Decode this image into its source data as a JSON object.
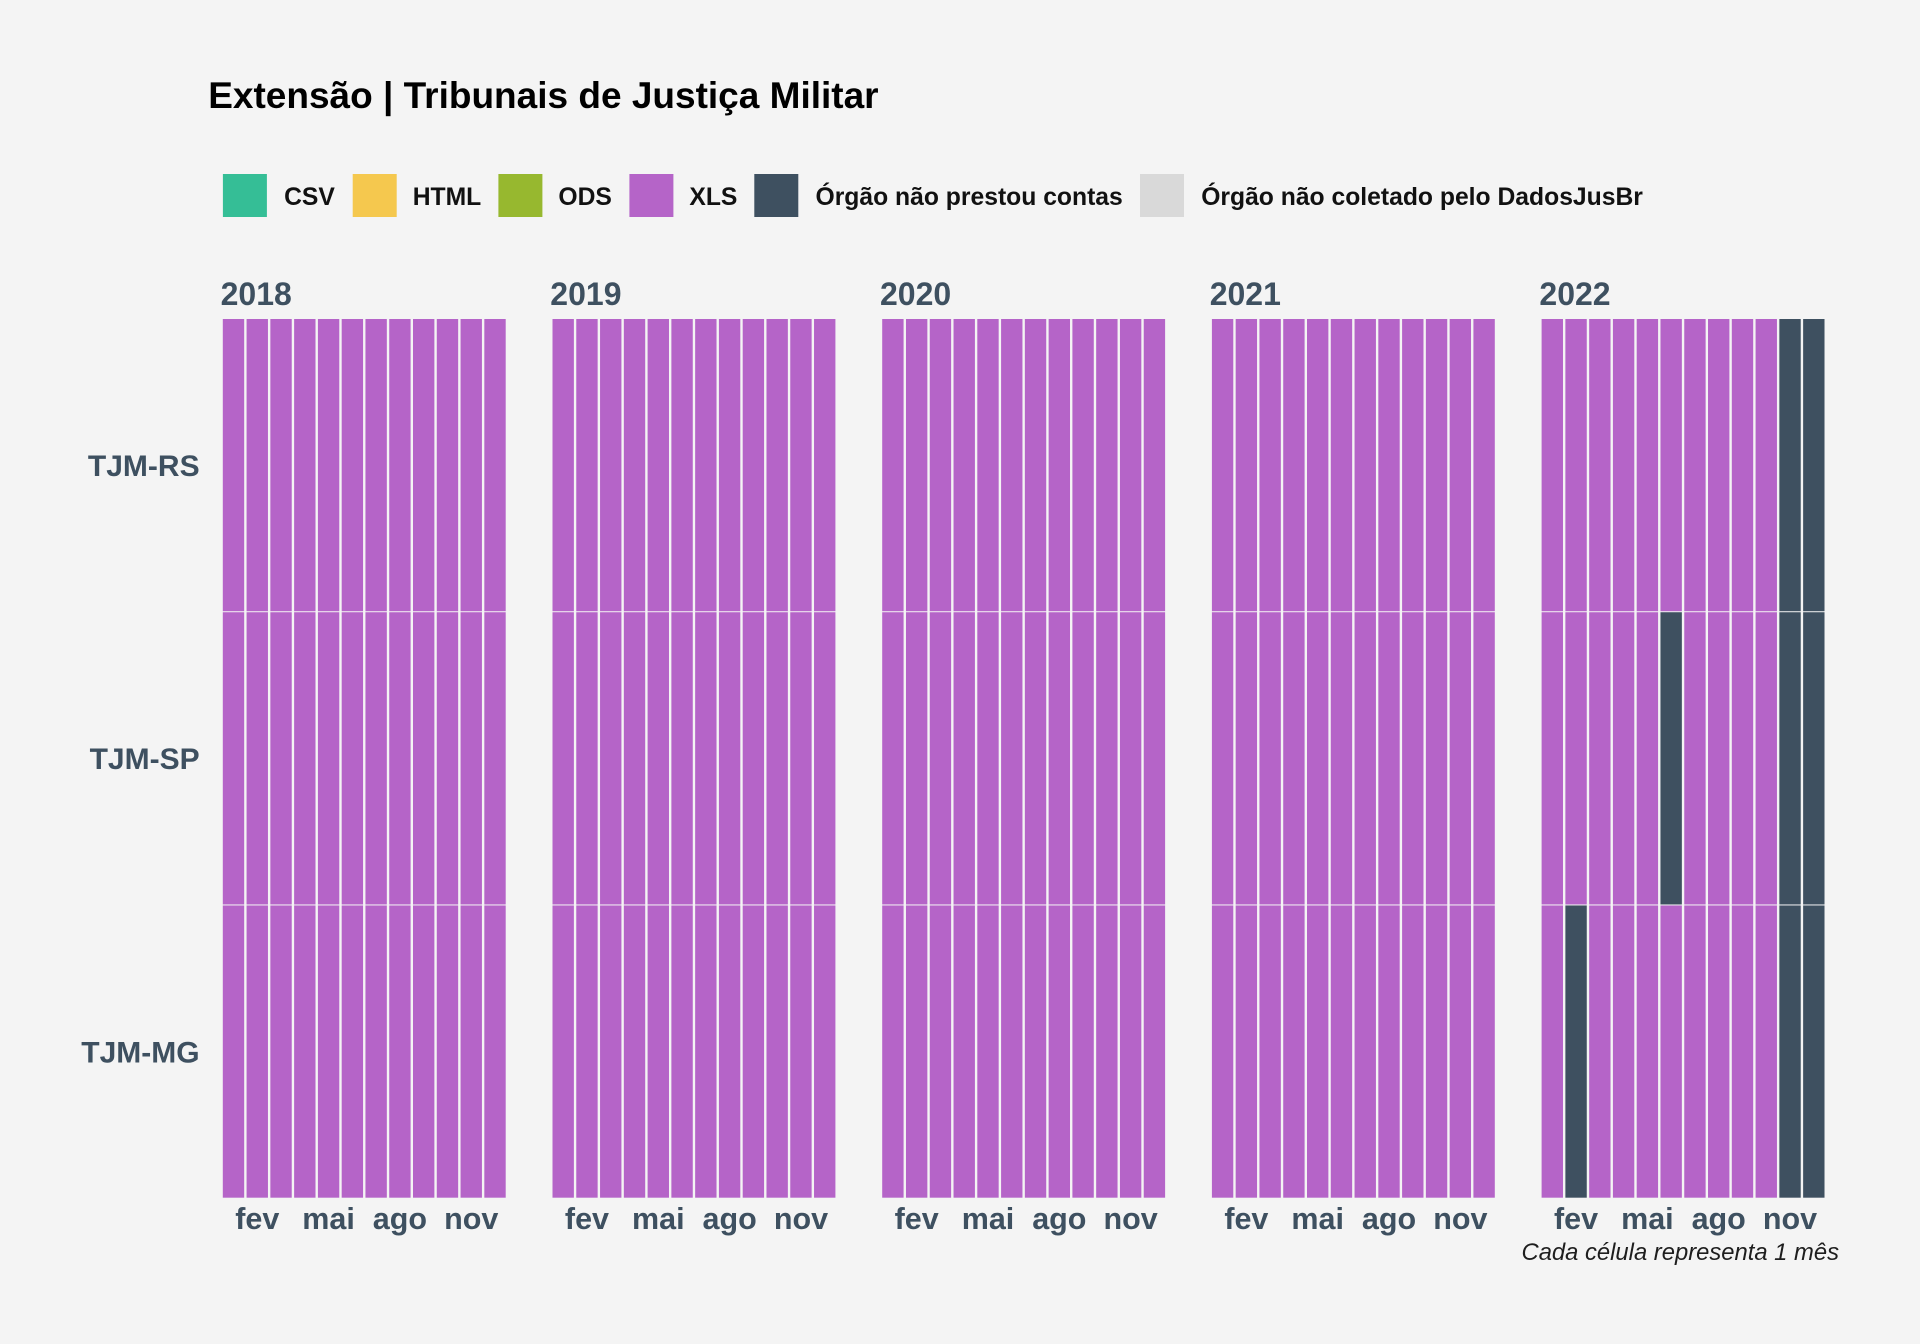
{
  "chart_data": {
    "type": "heatmap",
    "title": "Extensão | Tribunais de Justiça Militar",
    "legend_position": "top-left",
    "legend": [
      {
        "label": "CSV",
        "color": "#35BE96"
      },
      {
        "label": "HTML",
        "color": "#F5C84E"
      },
      {
        "label": "ODS",
        "color": "#97B82F"
      },
      {
        "label": "XLS",
        "color": "#B564C8"
      },
      {
        "label": "Órgão não prestou contas",
        "color": "#3E5060"
      },
      {
        "label": "Órgão não coletado pelo DadosJusBr",
        "color": "#D9D9D9"
      }
    ],
    "facets": [
      "2018",
      "2019",
      "2020",
      "2021",
      "2022"
    ],
    "rows": [
      "TJM-RS",
      "TJM-SP",
      "TJM-MG"
    ],
    "x_ticks": [
      {
        "label": "fev",
        "month": 2
      },
      {
        "label": "mai",
        "month": 5
      },
      {
        "label": "ago",
        "month": 8
      },
      {
        "label": "nov",
        "month": 11
      }
    ],
    "caption": "Cada célula representa 1 mês",
    "cells": {
      "2018": {
        "TJM-RS": [
          "XLS",
          "XLS",
          "XLS",
          "XLS",
          "XLS",
          "XLS",
          "XLS",
          "XLS",
          "XLS",
          "XLS",
          "XLS",
          "XLS"
        ],
        "TJM-SP": [
          "XLS",
          "XLS",
          "XLS",
          "XLS",
          "XLS",
          "XLS",
          "XLS",
          "XLS",
          "XLS",
          "XLS",
          "XLS",
          "XLS"
        ],
        "TJM-MG": [
          "XLS",
          "XLS",
          "XLS",
          "XLS",
          "XLS",
          "XLS",
          "XLS",
          "XLS",
          "XLS",
          "XLS",
          "XLS",
          "XLS"
        ]
      },
      "2019": {
        "TJM-RS": [
          "XLS",
          "XLS",
          "XLS",
          "XLS",
          "XLS",
          "XLS",
          "XLS",
          "XLS",
          "XLS",
          "XLS",
          "XLS",
          "XLS"
        ],
        "TJM-SP": [
          "XLS",
          "XLS",
          "XLS",
          "XLS",
          "XLS",
          "XLS",
          "XLS",
          "XLS",
          "XLS",
          "XLS",
          "XLS",
          "XLS"
        ],
        "TJM-MG": [
          "XLS",
          "XLS",
          "XLS",
          "XLS",
          "XLS",
          "XLS",
          "XLS",
          "XLS",
          "XLS",
          "XLS",
          "XLS",
          "XLS"
        ]
      },
      "2020": {
        "TJM-RS": [
          "XLS",
          "XLS",
          "XLS",
          "XLS",
          "XLS",
          "XLS",
          "XLS",
          "XLS",
          "XLS",
          "XLS",
          "XLS",
          "XLS"
        ],
        "TJM-SP": [
          "XLS",
          "XLS",
          "XLS",
          "XLS",
          "XLS",
          "XLS",
          "XLS",
          "XLS",
          "XLS",
          "XLS",
          "XLS",
          "XLS"
        ],
        "TJM-MG": [
          "XLS",
          "XLS",
          "XLS",
          "XLS",
          "XLS",
          "XLS",
          "XLS",
          "XLS",
          "XLS",
          "XLS",
          "XLS",
          "XLS"
        ]
      },
      "2021": {
        "TJM-RS": [
          "XLS",
          "XLS",
          "XLS",
          "XLS",
          "XLS",
          "XLS",
          "XLS",
          "XLS",
          "XLS",
          "XLS",
          "XLS",
          "XLS"
        ],
        "TJM-SP": [
          "XLS",
          "XLS",
          "XLS",
          "XLS",
          "XLS",
          "XLS",
          "XLS",
          "XLS",
          "XLS",
          "XLS",
          "XLS",
          "XLS"
        ],
        "TJM-MG": [
          "XLS",
          "XLS",
          "XLS",
          "XLS",
          "XLS",
          "XLS",
          "XLS",
          "XLS",
          "XLS",
          "XLS",
          "XLS",
          "XLS"
        ]
      },
      "2022": {
        "TJM-RS": [
          "XLS",
          "XLS",
          "XLS",
          "XLS",
          "XLS",
          "XLS",
          "XLS",
          "XLS",
          "XLS",
          "XLS",
          "Órgão não prestou contas",
          "Órgão não prestou contas"
        ],
        "TJM-SP": [
          "XLS",
          "XLS",
          "XLS",
          "XLS",
          "XLS",
          "Órgão não prestou contas",
          "XLS",
          "XLS",
          "XLS",
          "XLS",
          "Órgão não prestou contas",
          "Órgão não prestou contas"
        ],
        "TJM-MG": [
          "XLS",
          "Órgão não prestou contas",
          "XLS",
          "XLS",
          "XLS",
          "XLS",
          "XLS",
          "XLS",
          "XLS",
          "XLS",
          "Órgão não prestou contas",
          "Órgão não prestou contas"
        ]
      }
    }
  }
}
